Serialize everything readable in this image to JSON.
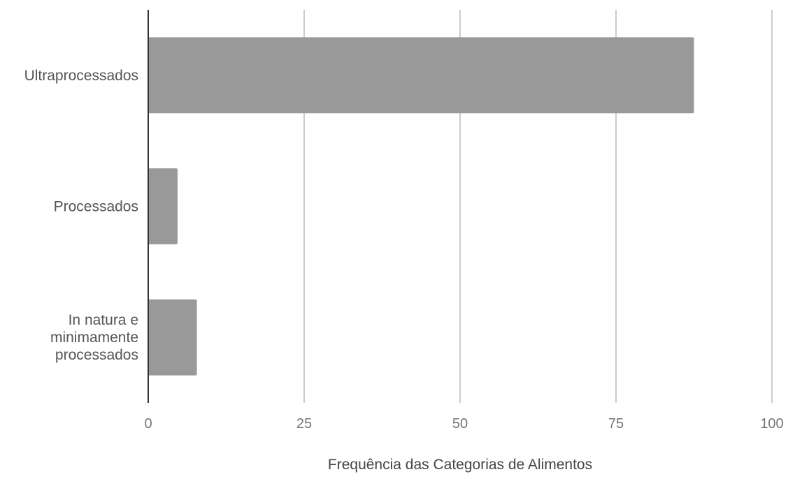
{
  "chart_data": {
    "type": "bar",
    "orientation": "horizontal",
    "categories": [
      "Ultraprocessados",
      "Processados",
      "In natura e minimamente processados"
    ],
    "category_lines": [
      [
        "Ultraprocessados"
      ],
      [
        "Processados"
      ],
      [
        "In natura e",
        "minimamente",
        "processados"
      ]
    ],
    "values": [
      87.5,
      4.7,
      7.8
    ],
    "xlabel": "Frequência das Categorias de Alimentos",
    "ylabel": "",
    "title": "",
    "xlim": [
      0,
      100
    ],
    "xticks": [
      "0",
      "25",
      "50",
      "75",
      "100"
    ],
    "grid": true,
    "legend": "none",
    "colors": {
      "bar": "#999999",
      "grid": "#cccccc",
      "axis": "#333333",
      "label_text": "#555555",
      "tick_text": "#757575",
      "title_text": "#444444"
    }
  }
}
